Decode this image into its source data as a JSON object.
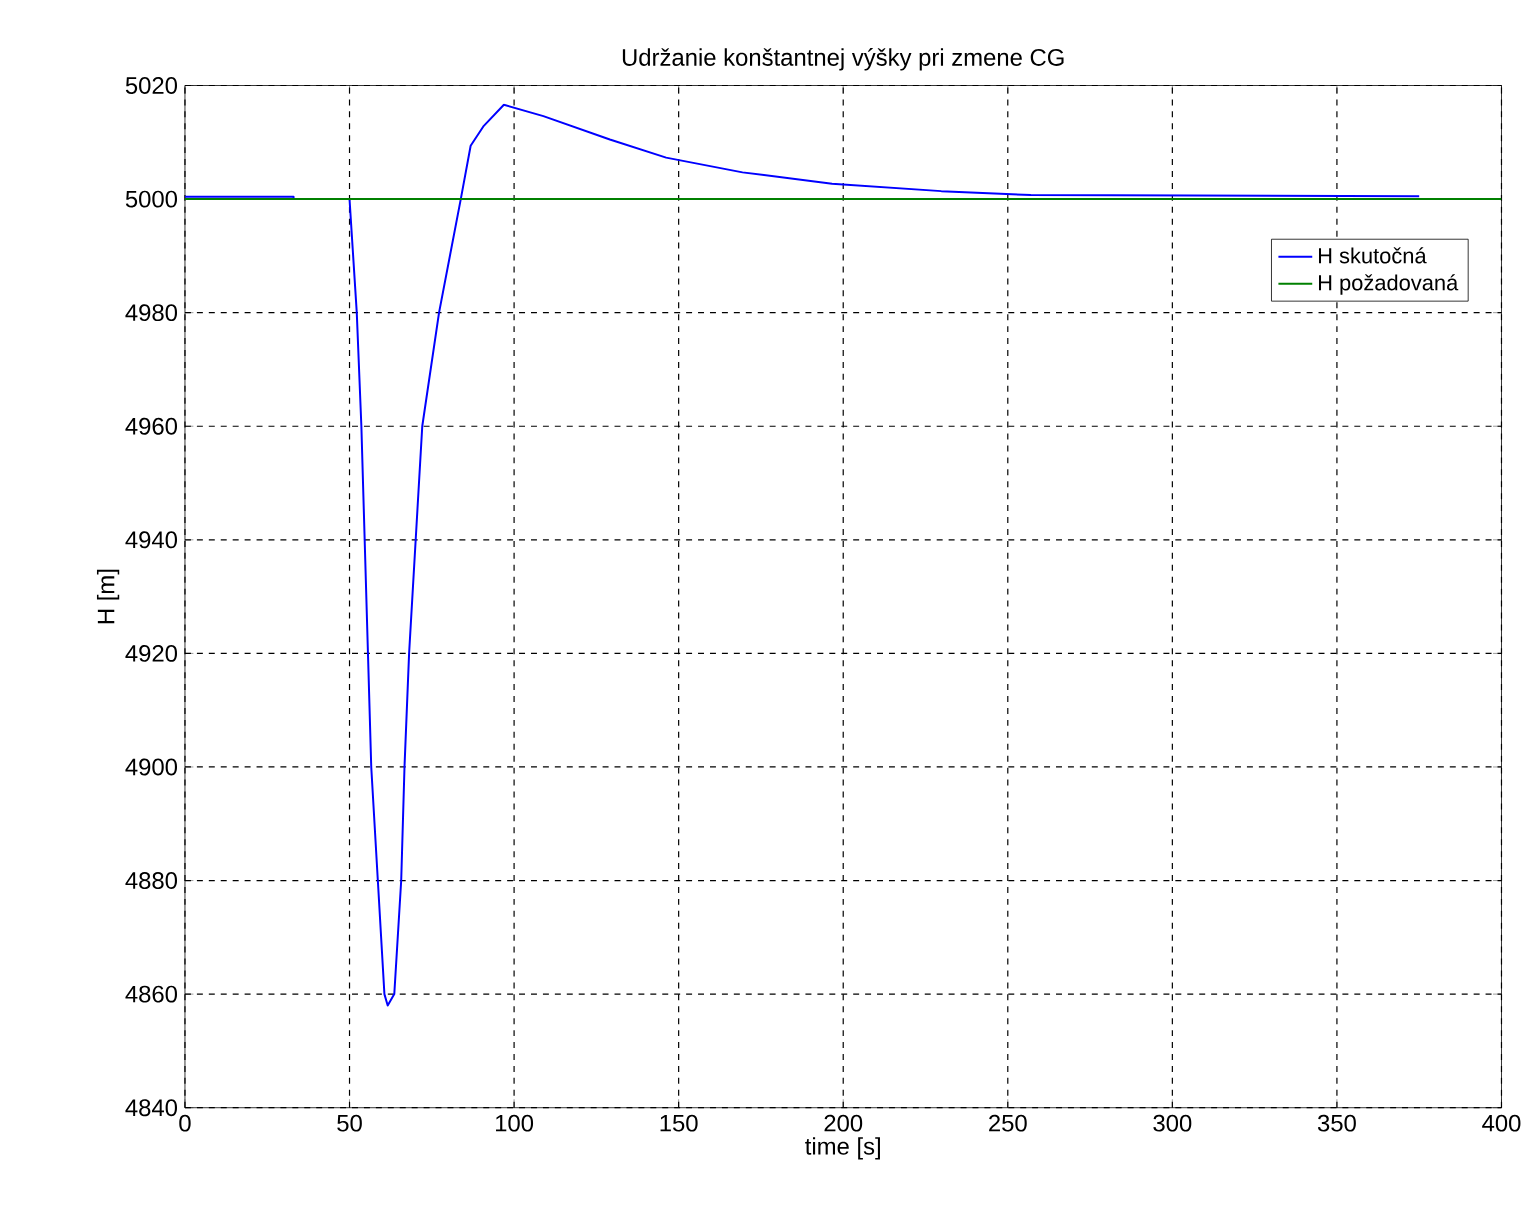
{
  "chart_data": {
    "type": "line",
    "title": "Udržanie konštantnej výšky pri zmene CG",
    "xlabel": "time [s]",
    "ylabel": "H [m]",
    "xlim": [
      0,
      400
    ],
    "ylim": [
      4840,
      5020
    ],
    "xticks": [
      0,
      50,
      100,
      150,
      200,
      250,
      300,
      350,
      400
    ],
    "yticks": [
      4840,
      4860,
      4880,
      4900,
      4920,
      4940,
      4960,
      4980,
      5000,
      5020
    ],
    "grid": true,
    "legend": "top right",
    "line_style": "solid",
    "marker": "none",
    "series": [
      {
        "name": "H skutočná",
        "color": "#0000ff",
        "x": [
          0,
          33,
          33,
          50,
          52.2,
          53.6,
          54.6,
          55.6,
          56.6,
          58.6,
          60.6,
          61.6,
          63.6,
          65.7,
          66.7,
          68.1,
          70.1,
          72.1,
          77.2,
          83.8,
          86.8,
          90.8,
          96.9,
          108.9,
          129.1,
          146.2,
          169.4,
          196.6,
          229.8,
          257,
          375
        ],
        "values": [
          5000.4,
          5000.4,
          5000,
          5000,
          4980,
          4960,
          4940,
          4920,
          4900,
          4880,
          4860,
          4858,
          4860,
          4880,
          4900,
          4920,
          4940,
          4960,
          4980,
          5000,
          5009.4,
          5012.9,
          5016.6,
          5014.6,
          5010.5,
          5007.3,
          5004.7,
          5002.7,
          5001.4,
          5000.7,
          5000.5
        ]
      },
      {
        "name": "H požadovaná",
        "color": "#008000",
        "x": [
          0,
          400
        ],
        "values": [
          5000,
          5000
        ]
      }
    ]
  }
}
